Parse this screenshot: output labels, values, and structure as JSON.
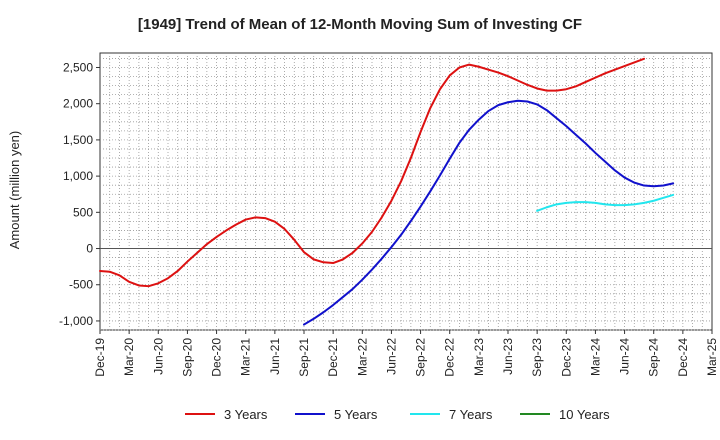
{
  "chart_data": {
    "type": "line",
    "title": "[1949]  Trend of Mean of 12-Month Moving Sum of Investing CF",
    "xlabel": "",
    "ylabel": "Amount (million yen)",
    "ylim": [
      -1125,
      2700
    ],
    "yticks": [
      -1000,
      -500,
      0,
      500,
      1000,
      1500,
      2000,
      2500
    ],
    "ytick_labels": [
      "-1,000",
      "-500",
      "0",
      "500",
      "1,000",
      "1,500",
      "2,000",
      "2,500"
    ],
    "xtick_labels": [
      "Dec-19",
      "Mar-20",
      "Jun-20",
      "Sep-20",
      "Dec-20",
      "Mar-21",
      "Jun-21",
      "Sep-21",
      "Dec-21",
      "Mar-22",
      "Jun-22",
      "Sep-22",
      "Dec-22",
      "Mar-23",
      "Jun-23",
      "Sep-23",
      "Dec-23",
      "Mar-24",
      "Jun-24",
      "Sep-24",
      "Dec-24",
      "Mar-25"
    ],
    "grid": true,
    "legend_position": "bottom",
    "zero_line": true,
    "series": [
      {
        "name": "3 Years",
        "color": "#dd1111",
        "start_index": 0,
        "values": [
          -310,
          -320,
          -370,
          -460,
          -510,
          -520,
          -480,
          -410,
          -310,
          -180,
          -60,
          60,
          160,
          250,
          330,
          400,
          430,
          420,
          370,
          270,
          120,
          -50,
          -150,
          -190,
          -200,
          -150,
          -60,
          70,
          230,
          430,
          660,
          930,
          1250,
          1610,
          1940,
          2200,
          2390,
          2500,
          2540,
          2510,
          2470,
          2430,
          2380,
          2320,
          2260,
          2210,
          2180,
          2180,
          2200,
          2240,
          2300,
          2360,
          2420,
          2470,
          2520,
          2570,
          2620
        ]
      },
      {
        "name": "5 Years",
        "color": "#1111cc",
        "start_index": 21,
        "values": [
          -1050,
          -970,
          -880,
          -780,
          -670,
          -560,
          -430,
          -290,
          -140,
          20,
          190,
          380,
          580,
          790,
          1010,
          1240,
          1460,
          1640,
          1780,
          1900,
          1980,
          2020,
          2040,
          2030,
          1990,
          1910,
          1800,
          1690,
          1570,
          1450,
          1320,
          1200,
          1080,
          980,
          910,
          870,
          860,
          870,
          900
        ]
      },
      {
        "name": "7 Years",
        "color": "#22e6ee",
        "start_index": 45,
        "values": [
          520,
          570,
          610,
          630,
          640,
          640,
          630,
          610,
          600,
          600,
          610,
          630,
          660,
          700,
          740
        ]
      },
      {
        "name": "10 Years",
        "color": "#228822",
        "start_index": 0,
        "values": []
      }
    ]
  }
}
